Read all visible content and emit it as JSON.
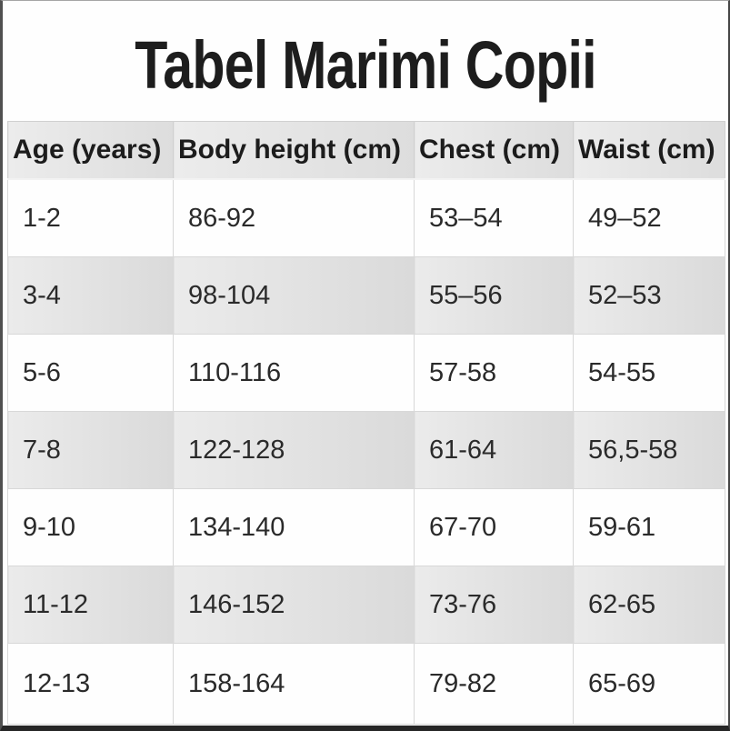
{
  "title": "Tabel Marimi Copii",
  "chart_data": {
    "type": "table",
    "title": "Tabel Marimi Copii",
    "columns": [
      "Age (years)",
      "Body height (cm)",
      "Chest (cm)",
      "Waist (cm)"
    ],
    "rows": [
      [
        "1-2",
        "86-92",
        "53–54",
        "49–52"
      ],
      [
        "3-4",
        "98-104",
        "55–56",
        "52–53"
      ],
      [
        "5-6",
        "110-116",
        "57-58",
        "54-55"
      ],
      [
        "7-8",
        "122-128",
        "61-64",
        "56,5-58"
      ],
      [
        "9-10",
        "134-140",
        "67-70",
        "59-61"
      ],
      [
        "11-12",
        "146-152",
        "73-76",
        "62-65"
      ],
      [
        "12-13",
        "158-164",
        "79-82",
        "65-69"
      ]
    ],
    "layout_hints": {
      "zebra_striping": true,
      "header_position": "top"
    }
  },
  "colors": {
    "header_bg": "#e6e6e6",
    "alt_row_bg": "#e2e2e2",
    "row_bg": "#fefefe",
    "cell_border": "#d6d6d6",
    "text": "#2a2a2a",
    "frame_border": "#3c3c3c"
  }
}
